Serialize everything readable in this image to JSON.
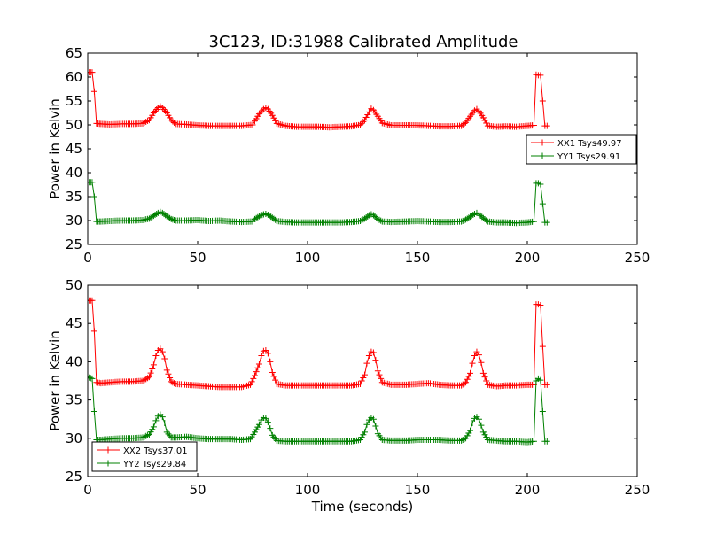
{
  "figure": {
    "title": "3C123, ID:31988 Calibrated Amplitude"
  },
  "chart_data": [
    {
      "type": "line",
      "title": "3C123, ID:31988 Calibrated Amplitude",
      "xlabel": "",
      "ylabel": "Power in Kelvin",
      "xlim": [
        0,
        250
      ],
      "ylim": [
        25,
        65
      ],
      "xticks": [
        0,
        50,
        100,
        150,
        200,
        250
      ],
      "yticks": [
        25,
        30,
        35,
        40,
        45,
        50,
        55,
        60,
        65
      ],
      "grid": false,
      "legend_position": "right",
      "series": [
        {
          "name": "XX1 Tsys49.97",
          "color": "#ff0000",
          "x": [
            0,
            2,
            3,
            4,
            6,
            10,
            15,
            20,
            25,
            28,
            30,
            32,
            33,
            34,
            36,
            38,
            40,
            45,
            50,
            55,
            60,
            65,
            70,
            75,
            76,
            78,
            80,
            81,
            82,
            84,
            86,
            90,
            95,
            100,
            105,
            110,
            115,
            120,
            124,
            126,
            128,
            129,
            130,
            132,
            134,
            138,
            145,
            150,
            155,
            160,
            165,
            170,
            172,
            174,
            176,
            177,
            178,
            180,
            182,
            186,
            190,
            195,
            200,
            203,
            204,
            205,
            206,
            207,
            208,
            209
          ],
          "y": [
            61,
            61,
            57,
            50.3,
            50.2,
            50.1,
            50.2,
            50.2,
            50.3,
            51,
            52.5,
            53.6,
            53.9,
            53.6,
            52.5,
            51,
            50.2,
            50.1,
            49.9,
            49.8,
            49.8,
            49.8,
            49.8,
            50.0,
            50.8,
            52.3,
            53.3,
            53.6,
            53.3,
            52,
            50.3,
            49.8,
            49.6,
            49.6,
            49.6,
            49.5,
            49.6,
            49.7,
            50,
            51,
            52.7,
            53.4,
            53.1,
            51.8,
            50.4,
            49.9,
            49.9,
            49.9,
            49.8,
            49.7,
            49.7,
            49.8,
            50.5,
            51.8,
            53,
            53.3,
            52.9,
            51.5,
            49.8,
            49.6,
            49.7,
            49.6,
            49.8,
            49.9,
            60.5,
            60.4,
            60.4,
            55,
            49.8,
            49.8
          ]
        },
        {
          "name": "YY1 Tsys29.91",
          "color": "#008000",
          "x": [
            0,
            2,
            3,
            4,
            6,
            10,
            15,
            20,
            25,
            28,
            30,
            32,
            33,
            34,
            36,
            38,
            40,
            45,
            50,
            55,
            60,
            65,
            70,
            75,
            76,
            78,
            80,
            81,
            82,
            84,
            86,
            90,
            95,
            100,
            105,
            110,
            115,
            120,
            124,
            126,
            128,
            129,
            130,
            132,
            134,
            138,
            145,
            150,
            155,
            160,
            165,
            170,
            172,
            174,
            176,
            177,
            178,
            180,
            182,
            186,
            190,
            195,
            200,
            203,
            204,
            205,
            206,
            207,
            208,
            209
          ],
          "y": [
            38,
            38,
            35,
            29.8,
            29.8,
            29.9,
            30,
            30,
            30.1,
            30.4,
            31,
            31.6,
            31.8,
            31.6,
            30.9,
            30.3,
            30,
            30,
            30.1,
            29.9,
            30,
            29.8,
            29.7,
            29.8,
            30.3,
            30.9,
            31.3,
            31.4,
            31.2,
            30.6,
            29.9,
            29.7,
            29.6,
            29.6,
            29.6,
            29.6,
            29.6,
            29.7,
            29.9,
            30.4,
            31.1,
            31.3,
            31.1,
            30.3,
            29.8,
            29.7,
            29.8,
            29.9,
            29.8,
            29.7,
            29.7,
            29.8,
            30.2,
            30.8,
            31.4,
            31.6,
            31.3,
            30.5,
            29.8,
            29.6,
            29.6,
            29.5,
            29.6,
            29.8,
            37.8,
            37.8,
            37.6,
            33.5,
            29.6,
            29.6
          ]
        }
      ]
    },
    {
      "type": "line",
      "title": "",
      "xlabel": "Time (seconds)",
      "ylabel": "Power in Kelvin",
      "xlim": [
        0,
        250
      ],
      "ylim": [
        25,
        50
      ],
      "xticks": [
        0,
        50,
        100,
        150,
        200,
        250
      ],
      "yticks": [
        25,
        30,
        35,
        40,
        45,
        50
      ],
      "grid": false,
      "legend_position": "lower-left",
      "series": [
        {
          "name": "XX2 Tsys37.01",
          "color": "#ff0000",
          "x": [
            0,
            2,
            3,
            4,
            6,
            10,
            15,
            20,
            25,
            28,
            30,
            31,
            32,
            33,
            34,
            35,
            36,
            38,
            40,
            45,
            50,
            55,
            60,
            65,
            70,
            74,
            76,
            78,
            79,
            80,
            81,
            82,
            83,
            84,
            86,
            90,
            95,
            100,
            105,
            110,
            115,
            120,
            124,
            126,
            127,
            128,
            129,
            130,
            131,
            132,
            134,
            138,
            145,
            150,
            155,
            160,
            165,
            170,
            172,
            174,
            175,
            176,
            177,
            178,
            179,
            180,
            182,
            186,
            190,
            195,
            200,
            203,
            204,
            205,
            206,
            207,
            208,
            209
          ],
          "y": [
            48,
            48,
            44,
            37.3,
            37.2,
            37.3,
            37.4,
            37.4,
            37.5,
            38,
            39.6,
            40.8,
            41.5,
            41.7,
            41.3,
            40.4,
            38.9,
            37.4,
            37.1,
            37,
            36.9,
            36.8,
            36.7,
            36.7,
            36.7,
            37,
            38.2,
            39.7,
            40.8,
            41.4,
            41.5,
            41.1,
            40,
            38.6,
            37.1,
            36.9,
            36.9,
            36.9,
            36.9,
            36.9,
            36.9,
            36.9,
            37.1,
            38.3,
            39.8,
            40.8,
            41.3,
            41.2,
            40.2,
            38.8,
            37.3,
            37,
            37,
            37.1,
            37.2,
            37,
            36.9,
            36.9,
            37.3,
            38.5,
            39.8,
            40.8,
            41.3,
            40.9,
            39.9,
            38.5,
            37,
            36.8,
            36.9,
            36.9,
            37,
            37,
            47.5,
            47.5,
            47.4,
            42,
            37,
            37
          ]
        },
        {
          "name": "YY2 Tsys29.84",
          "color": "#008000",
          "x": [
            0,
            2,
            3,
            4,
            6,
            10,
            15,
            20,
            25,
            28,
            30,
            31,
            32,
            33,
            34,
            35,
            36,
            38,
            40,
            45,
            50,
            55,
            60,
            65,
            70,
            74,
            76,
            78,
            79,
            80,
            81,
            82,
            83,
            84,
            86,
            90,
            95,
            100,
            105,
            110,
            115,
            120,
            124,
            126,
            127,
            128,
            129,
            130,
            131,
            132,
            134,
            138,
            145,
            150,
            155,
            160,
            165,
            170,
            172,
            174,
            175,
            176,
            177,
            178,
            179,
            180,
            182,
            186,
            190,
            195,
            200,
            203,
            204,
            205,
            206,
            207,
            208,
            209
          ],
          "y": [
            38,
            37.8,
            33.5,
            29.8,
            29.8,
            29.9,
            30,
            30,
            30.1,
            30.5,
            31.5,
            32.3,
            32.9,
            33.1,
            32.8,
            32,
            30.8,
            30.1,
            30.1,
            30.2,
            30,
            29.9,
            29.9,
            29.9,
            29.8,
            29.9,
            30.8,
            31.8,
            32.4,
            32.7,
            32.6,
            32.1,
            31.3,
            30.4,
            29.7,
            29.6,
            29.6,
            29.6,
            29.6,
            29.6,
            29.6,
            29.6,
            29.8,
            30.8,
            31.8,
            32.4,
            32.7,
            32.5,
            31.6,
            30.6,
            29.8,
            29.7,
            29.7,
            29.8,
            29.8,
            29.8,
            29.7,
            29.7,
            30,
            31,
            32,
            32.6,
            32.8,
            32.5,
            31.7,
            30.8,
            29.8,
            29.7,
            29.6,
            29.6,
            29.5,
            29.6,
            37.5,
            37.8,
            37.6,
            33.5,
            29.6,
            29.6
          ]
        }
      ]
    }
  ]
}
